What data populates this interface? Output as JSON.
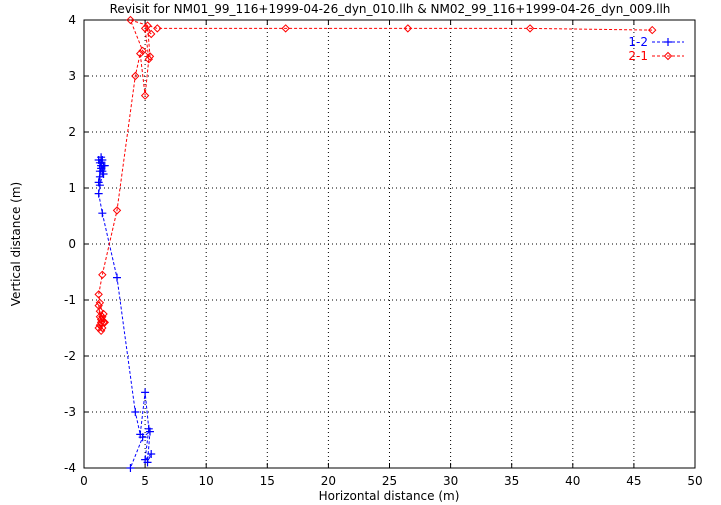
{
  "chart_data": {
    "type": "scatter",
    "title": "Revisit for NM01_99_116+1999-04-26_dyn_010.llh & NM02_99_116+1999-04-26_dyn_009.llh",
    "xlabel": "Horizontal distance (m)",
    "ylabel": "Vertical distance (m)",
    "xlim": [
      0,
      50
    ],
    "ylim": [
      -4,
      4
    ],
    "xticks": [
      0,
      5,
      10,
      15,
      20,
      25,
      30,
      35,
      40,
      45,
      50
    ],
    "yticks": [
      -4,
      -3,
      -2,
      -1,
      0,
      1,
      2,
      3,
      4
    ],
    "grid": true,
    "legend_position": "top-right",
    "series": [
      {
        "name": "1-2",
        "color": "#0000ff",
        "marker": "plus",
        "line": "dashed",
        "points": [
          [
            1.2,
            1.5
          ],
          [
            1.3,
            1.3
          ],
          [
            1.2,
            1.1
          ],
          [
            1.4,
            1.4
          ],
          [
            1.3,
            1.2
          ],
          [
            1.5,
            1.5
          ],
          [
            1.3,
            1.45
          ],
          [
            1.4,
            1.35
          ],
          [
            1.6,
            1.4
          ],
          [
            1.5,
            1.3
          ],
          [
            1.4,
            1.55
          ],
          [
            1.6,
            1.25
          ],
          [
            1.7,
            1.4
          ],
          [
            1.3,
            1.05
          ],
          [
            1.2,
            0.9
          ],
          [
            1.5,
            0.55
          ],
          [
            2.7,
            -0.6
          ],
          [
            4.2,
            -3.0
          ],
          [
            4.6,
            -3.4
          ],
          [
            5.0,
            -2.65
          ],
          [
            5.3,
            -3.3
          ],
          [
            5.0,
            -3.85
          ],
          [
            5.5,
            -3.75
          ],
          [
            5.2,
            -3.9
          ],
          [
            5.4,
            -3.35
          ],
          [
            4.8,
            -3.45
          ],
          [
            3.8,
            -4.0
          ]
        ]
      },
      {
        "name": "2-1",
        "color": "#ff0000",
        "marker": "diamond",
        "line": "dashed",
        "points": [
          [
            1.2,
            -1.5
          ],
          [
            1.3,
            -1.3
          ],
          [
            1.2,
            -1.1
          ],
          [
            1.4,
            -1.4
          ],
          [
            1.3,
            -1.2
          ],
          [
            1.5,
            -1.5
          ],
          [
            1.3,
            -1.45
          ],
          [
            1.4,
            -1.35
          ],
          [
            1.6,
            -1.4
          ],
          [
            1.5,
            -1.3
          ],
          [
            1.4,
            -1.55
          ],
          [
            1.6,
            -1.25
          ],
          [
            1.7,
            -1.4
          ],
          [
            1.3,
            -1.05
          ],
          [
            1.2,
            -0.9
          ],
          [
            1.5,
            -0.55
          ],
          [
            2.7,
            0.6
          ],
          [
            4.2,
            3.0
          ],
          [
            4.6,
            3.4
          ],
          [
            5.0,
            2.65
          ],
          [
            5.3,
            3.3
          ],
          [
            5.0,
            3.85
          ],
          [
            5.5,
            3.75
          ],
          [
            5.2,
            3.9
          ],
          [
            5.4,
            3.35
          ],
          [
            4.8,
            3.45
          ],
          [
            3.8,
            4.0
          ],
          [
            6.0,
            3.85
          ],
          [
            16.5,
            3.85
          ],
          [
            26.5,
            3.85
          ],
          [
            36.5,
            3.85
          ],
          [
            46.5,
            3.82
          ]
        ]
      }
    ]
  }
}
